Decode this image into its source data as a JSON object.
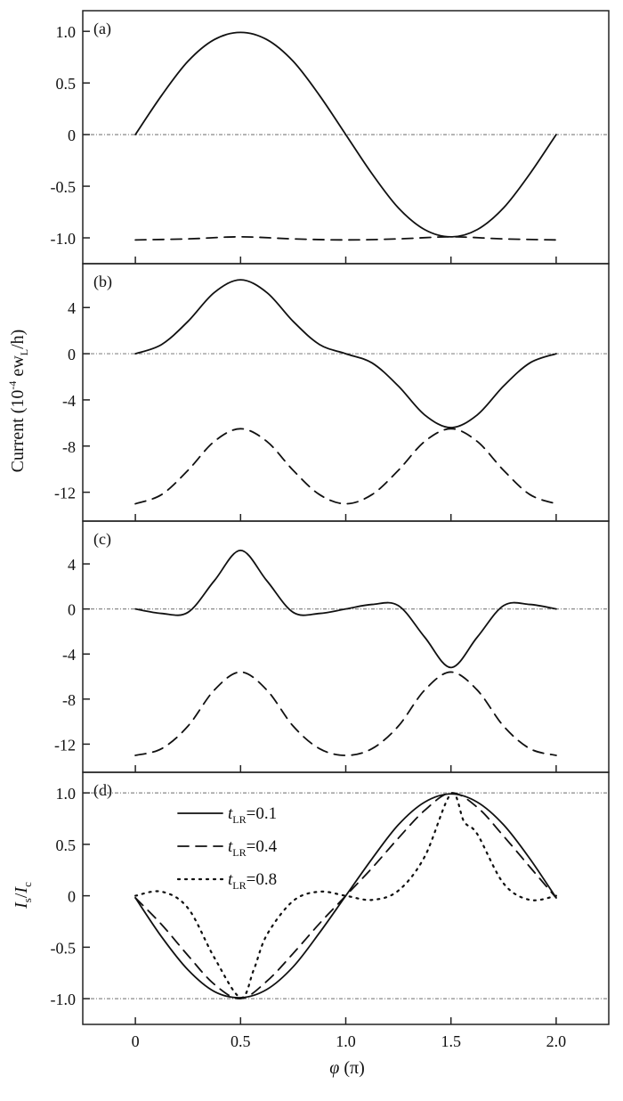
{
  "figure": {
    "xlabel_symbol": "φ",
    "xlabel_unit": "(π)",
    "shared_ylabel_parts": [
      "Current (10",
      "-4",
      " ew",
      "L",
      "/h)"
    ],
    "colors": {
      "axis": "#222222",
      "curve": "#111111",
      "reference": "#888888",
      "background": "#ffffff"
    }
  },
  "chart_data": [
    {
      "type": "line",
      "panel": "(a)",
      "x_range": [
        -0.25,
        2.25
      ],
      "ylim": [
        -1.25,
        1.2
      ],
      "x_ticks": [
        0,
        0.5,
        1.0,
        1.5,
        2.0
      ],
      "y_ticks": [
        1.0,
        0.5,
        0,
        -0.5,
        -1.0
      ],
      "y_tick_labels": [
        "1.0",
        "0.5",
        "0",
        "-0.5",
        "-1.0"
      ],
      "reference_lines": [
        0
      ],
      "series": [
        {
          "name": "solid",
          "style": "solid",
          "x": [
            0,
            0.125,
            0.25,
            0.375,
            0.5,
            0.625,
            0.75,
            0.875,
            1.0,
            1.125,
            1.25,
            1.375,
            1.5,
            1.625,
            1.75,
            1.875,
            2.0
          ],
          "values": [
            0,
            0.38,
            0.71,
            0.92,
            0.99,
            0.92,
            0.71,
            0.38,
            0,
            -0.38,
            -0.71,
            -0.92,
            -0.99,
            -0.92,
            -0.71,
            -0.38,
            0
          ]
        },
        {
          "name": "dashed",
          "style": "dashed",
          "x": [
            0,
            0.25,
            0.5,
            0.75,
            1.0,
            1.25,
            1.5,
            1.75,
            2.0
          ],
          "values": [
            -1.02,
            -1.01,
            -0.99,
            -1.01,
            -1.02,
            -1.01,
            -0.99,
            -1.01,
            -1.02
          ]
        }
      ]
    },
    {
      "type": "line",
      "panel": "(b)",
      "x_range": [
        -0.25,
        2.25
      ],
      "ylim": [
        -14.5,
        7.8
      ],
      "x_ticks": [
        0,
        0.5,
        1.0,
        1.5,
        2.0
      ],
      "y_ticks": [
        4,
        0,
        -4,
        -8,
        -12
      ],
      "y_tick_labels": [
        "4",
        "0",
        "-4",
        "-8",
        "-12"
      ],
      "reference_lines": [
        0
      ],
      "series": [
        {
          "name": "solid",
          "style": "solid",
          "x": [
            0,
            0.125,
            0.25,
            0.375,
            0.5,
            0.625,
            0.75,
            0.875,
            1.0,
            1.125,
            1.25,
            1.375,
            1.5,
            1.625,
            1.75,
            1.875,
            2.0
          ],
          "values": [
            0,
            0.8,
            2.8,
            5.3,
            6.4,
            5.3,
            2.8,
            0.8,
            0,
            -0.8,
            -2.8,
            -5.3,
            -6.4,
            -5.3,
            -2.8,
            -0.8,
            0
          ]
        },
        {
          "name": "dashed",
          "style": "dashed",
          "x": [
            0,
            0.125,
            0.25,
            0.375,
            0.5,
            0.625,
            0.75,
            0.875,
            1.0,
            1.125,
            1.25,
            1.375,
            1.5,
            1.625,
            1.75,
            1.875,
            2.0
          ],
          "values": [
            -13.0,
            -12.2,
            -10.1,
            -7.6,
            -6.5,
            -7.6,
            -10.1,
            -12.2,
            -13.0,
            -12.2,
            -10.1,
            -7.6,
            -6.5,
            -7.6,
            -10.1,
            -12.2,
            -13.0
          ]
        }
      ]
    },
    {
      "type": "line",
      "panel": "(c)",
      "x_range": [
        -0.25,
        2.25
      ],
      "ylim": [
        -14.5,
        7.8
      ],
      "x_ticks": [
        0,
        0.5,
        1.0,
        1.5,
        2.0
      ],
      "y_ticks": [
        4,
        0,
        -4,
        -8,
        -12
      ],
      "y_tick_labels": [
        "4",
        "0",
        "-4",
        "-8",
        "-12"
      ],
      "reference_lines": [
        0
      ],
      "series": [
        {
          "name": "solid",
          "style": "solid",
          "x": [
            0,
            0.125,
            0.25,
            0.375,
            0.5,
            0.625,
            0.75,
            0.875,
            1.0,
            1.125,
            1.25,
            1.375,
            1.5,
            1.625,
            1.75,
            1.875,
            2.0
          ],
          "values": [
            0,
            -0.4,
            -0.3,
            2.5,
            5.2,
            2.5,
            -0.3,
            -0.4,
            0,
            0.4,
            0.3,
            -2.5,
            -5.2,
            -2.5,
            0.3,
            0.4,
            0
          ]
        },
        {
          "name": "dashed",
          "style": "dashed",
          "x": [
            0,
            0.125,
            0.25,
            0.375,
            0.5,
            0.625,
            0.75,
            0.875,
            1.0,
            1.125,
            1.25,
            1.375,
            1.5,
            1.625,
            1.75,
            1.875,
            2.0
          ],
          "values": [
            -13.0,
            -12.4,
            -10.4,
            -7.2,
            -5.6,
            -7.2,
            -10.4,
            -12.4,
            -13.0,
            -12.4,
            -10.4,
            -7.2,
            -5.6,
            -7.2,
            -10.4,
            -12.4,
            -13.0
          ]
        }
      ]
    },
    {
      "type": "line",
      "panel": "(d)",
      "x_range": [
        -0.25,
        2.25
      ],
      "ylim": [
        -1.25,
        1.2
      ],
      "x_ticks": [
        0,
        0.5,
        1.0,
        1.5,
        2.0
      ],
      "x_tick_labels": [
        "0",
        "0.5",
        "1.0",
        "1.5",
        "2.0"
      ],
      "y_ticks": [
        1.0,
        0.5,
        0,
        -0.5,
        -1.0
      ],
      "y_tick_labels": [
        "1.0",
        "0.5",
        "0",
        "-0.5",
        "-1.0"
      ],
      "reference_lines": [
        1.0,
        -1.0
      ],
      "ylabel_parts": [
        "I",
        "s",
        "/",
        "I",
        "c"
      ],
      "legend_position": "upper-left",
      "series": [
        {
          "name": "t_LR=0.1",
          "label_sub": "LR",
          "label_value": "=0.1",
          "style": "solid",
          "x": [
            0,
            0.125,
            0.25,
            0.375,
            0.5,
            0.625,
            0.75,
            0.875,
            1.0,
            1.125,
            1.25,
            1.375,
            1.5,
            1.625,
            1.75,
            1.875,
            2.0
          ],
          "values": [
            -0.02,
            -0.4,
            -0.72,
            -0.93,
            -0.99,
            -0.91,
            -0.69,
            -0.36,
            0,
            0.36,
            0.69,
            0.91,
            0.99,
            0.91,
            0.69,
            0.36,
            -0.02
          ]
        },
        {
          "name": "t_LR=0.4",
          "label_sub": "LR",
          "label_value": "=0.4",
          "style": "dashed",
          "x": [
            0,
            0.125,
            0.25,
            0.375,
            0.5,
            0.625,
            0.75,
            0.875,
            1.0,
            1.125,
            1.25,
            1.375,
            1.5,
            1.625,
            1.75,
            1.875,
            2.0
          ],
          "values": [
            -0.02,
            -0.28,
            -0.58,
            -0.86,
            -1.0,
            -0.83,
            -0.56,
            -0.27,
            0,
            0.27,
            0.56,
            0.83,
            1.0,
            0.86,
            0.58,
            0.28,
            -0.02
          ]
        },
        {
          "name": "t_LR=0.8",
          "label_sub": "LR",
          "label_value": "=0.8",
          "style": "dotted",
          "x": [
            0,
            0.125,
            0.25,
            0.375,
            0.5,
            0.5625,
            0.625,
            0.75,
            0.875,
            1.0,
            1.125,
            1.25,
            1.375,
            1.5,
            1.5625,
            1.625,
            1.75,
            1.875,
            2.0
          ],
          "values": [
            0,
            0.04,
            -0.12,
            -0.6,
            -0.99,
            -0.72,
            -0.38,
            -0.05,
            0.04,
            0,
            -0.04,
            0.05,
            0.38,
            0.99,
            0.72,
            0.6,
            0.12,
            -0.04,
            0
          ]
        }
      ]
    }
  ]
}
